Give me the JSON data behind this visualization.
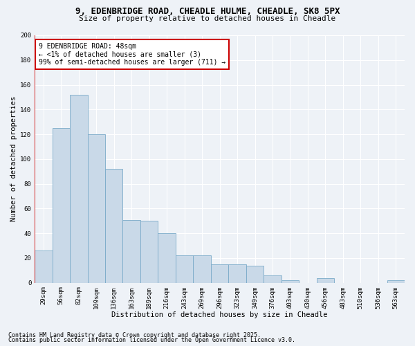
{
  "title1": "9, EDENBRIDGE ROAD, CHEADLE HULME, CHEADLE, SK8 5PX",
  "title2": "Size of property relative to detached houses in Cheadle",
  "xlabel": "Distribution of detached houses by size in Cheadle",
  "ylabel": "Number of detached properties",
  "categories": [
    "29sqm",
    "56sqm",
    "82sqm",
    "109sqm",
    "136sqm",
    "163sqm",
    "189sqm",
    "216sqm",
    "243sqm",
    "269sqm",
    "296sqm",
    "323sqm",
    "349sqm",
    "376sqm",
    "403sqm",
    "430sqm",
    "456sqm",
    "483sqm",
    "510sqm",
    "536sqm",
    "563sqm"
  ],
  "values": [
    26,
    125,
    152,
    120,
    92,
    51,
    50,
    40,
    22,
    22,
    15,
    15,
    14,
    6,
    2,
    0,
    4,
    0,
    0,
    0,
    2
  ],
  "bar_color": "#c9d9e8",
  "bar_edge_color": "#7aaac8",
  "highlight_line_color": "#cc0000",
  "annotation_title": "9 EDENBRIDGE ROAD: 48sqm",
  "annotation_line1": "← <1% of detached houses are smaller (3)",
  "annotation_line2": "99% of semi-detached houses are larger (711) →",
  "annotation_box_color": "#cc0000",
  "ylim": [
    0,
    200
  ],
  "yticks": [
    0,
    20,
    40,
    60,
    80,
    100,
    120,
    140,
    160,
    180,
    200
  ],
  "footnote1": "Contains HM Land Registry data © Crown copyright and database right 2025.",
  "footnote2": "Contains public sector information licensed under the Open Government Licence v3.0.",
  "background_color": "#eef2f7",
  "plot_bg_color": "#eef2f7",
  "title1_fontsize": 9,
  "title2_fontsize": 8,
  "axis_fontsize": 7.5,
  "tick_fontsize": 6.5,
  "annotation_fontsize": 7,
  "footnote_fontsize": 6
}
